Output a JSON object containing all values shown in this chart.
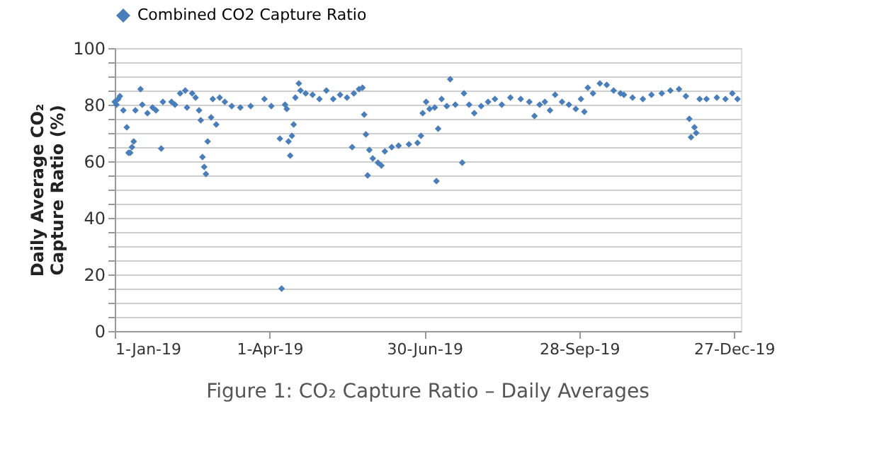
{
  "chart_data": {
    "type": "scatter",
    "title": "Figure 1: CO₂ Capture Ratio – Daily Averages",
    "ylabel": "Daily Average CO₂ Capture Ratio (%)",
    "marker": "diamond",
    "grid": "y",
    "legend": "top",
    "xlim": [
      "2019-01-01",
      "2019-12-31"
    ],
    "xticks": [
      {
        "value": "2019-01-01",
        "label": "1-Jan-19"
      },
      {
        "value": "2019-04-01",
        "label": "1-Apr-19"
      },
      {
        "value": "2019-06-30",
        "label": "30-Jun-19"
      },
      {
        "value": "2019-09-28",
        "label": "28-Sep-19"
      },
      {
        "value": "2019-12-27",
        "label": "27-Dec-19"
      }
    ],
    "ylim": [
      0,
      100
    ],
    "yticks": [
      {
        "value": 0,
        "label": "0"
      },
      {
        "value": 5,
        "label": null
      },
      {
        "value": 10,
        "label": null
      },
      {
        "value": 15,
        "label": null
      },
      {
        "value": 20,
        "label": "20"
      },
      {
        "value": 25,
        "label": null
      },
      {
        "value": 30,
        "label": null
      },
      {
        "value": 35,
        "label": null
      },
      {
        "value": 40,
        "label": "40"
      },
      {
        "value": 45,
        "label": null
      },
      {
        "value": 50,
        "label": null
      },
      {
        "value": 55,
        "label": null
      },
      {
        "value": 60,
        "label": "60"
      },
      {
        "value": 65,
        "label": null
      },
      {
        "value": 70,
        "label": null
      },
      {
        "value": 75,
        "label": null
      },
      {
        "value": 80,
        "label": "80"
      },
      {
        "value": 85,
        "label": null
      },
      {
        "value": 90,
        "label": null
      },
      {
        "value": 95,
        "label": null
      },
      {
        "value": 100,
        "label": "100"
      }
    ],
    "series": [
      {
        "name": "Combined CO2 Capture Ratio",
        "color": "#4a7ebb",
        "x": [
          "2019-01-01",
          "2019-01-02",
          "2019-01-03",
          "2019-01-04",
          "2019-01-06",
          "2019-01-08",
          "2019-01-09",
          "2019-01-10",
          "2019-01-11",
          "2019-01-12",
          "2019-01-13",
          "2019-01-16",
          "2019-01-17",
          "2019-01-20",
          "2019-01-23",
          "2019-01-25",
          "2019-01-28",
          "2019-01-29",
          "2019-02-03",
          "2019-02-05",
          "2019-02-08",
          "2019-02-11",
          "2019-02-12",
          "2019-02-15",
          "2019-02-17",
          "2019-02-19",
          "2019-02-20",
          "2019-02-21",
          "2019-02-22",
          "2019-02-23",
          "2019-02-24",
          "2019-02-26",
          "2019-02-27",
          "2019-03-01",
          "2019-03-03",
          "2019-03-06",
          "2019-03-10",
          "2019-03-15",
          "2019-03-21",
          "2019-03-29",
          "2019-04-02",
          "2019-04-07",
          "2019-04-08",
          "2019-04-10",
          "2019-04-11",
          "2019-04-12",
          "2019-04-13",
          "2019-04-14",
          "2019-04-15",
          "2019-04-16",
          "2019-04-18",
          "2019-04-19",
          "2019-04-22",
          "2019-04-26",
          "2019-04-30",
          "2019-05-04",
          "2019-05-08",
          "2019-05-12",
          "2019-05-16",
          "2019-05-19",
          "2019-05-20",
          "2019-05-23",
          "2019-05-25",
          "2019-05-26",
          "2019-05-27",
          "2019-05-28",
          "2019-05-29",
          "2019-05-31",
          "2019-06-03",
          "2019-06-05",
          "2019-06-07",
          "2019-06-11",
          "2019-06-15",
          "2019-06-21",
          "2019-06-26",
          "2019-06-28",
          "2019-06-29",
          "2019-07-01",
          "2019-07-03",
          "2019-07-06",
          "2019-07-07",
          "2019-07-08",
          "2019-07-10",
          "2019-07-13",
          "2019-07-15",
          "2019-07-18",
          "2019-07-22",
          "2019-07-23",
          "2019-07-26",
          "2019-07-29",
          "2019-08-02",
          "2019-08-06",
          "2019-08-10",
          "2019-08-14",
          "2019-08-19",
          "2019-08-25",
          "2019-08-30",
          "2019-09-02",
          "2019-09-05",
          "2019-09-08",
          "2019-09-11",
          "2019-09-14",
          "2019-09-18",
          "2019-09-22",
          "2019-09-26",
          "2019-09-29",
          "2019-10-01",
          "2019-10-03",
          "2019-10-06",
          "2019-10-10",
          "2019-10-14",
          "2019-10-18",
          "2019-10-22",
          "2019-10-24",
          "2019-10-29",
          "2019-11-04",
          "2019-11-09",
          "2019-11-15",
          "2019-11-20",
          "2019-11-25",
          "2019-11-29",
          "2019-12-01",
          "2019-12-02",
          "2019-12-04",
          "2019-12-05",
          "2019-12-07",
          "2019-12-11",
          "2019-12-17",
          "2019-12-22",
          "2019-12-26",
          "2019-12-29"
        ],
        "values": [
          81,
          80,
          82,
          83,
          78,
          72,
          63,
          63,
          65,
          67,
          78,
          85.5,
          80,
          77,
          79,
          78,
          64.5,
          81,
          81,
          80,
          84,
          85,
          79,
          84,
          82.5,
          78,
          74.5,
          61.5,
          58,
          55.5,
          67,
          75.5,
          82,
          73,
          82.5,
          81,
          79.5,
          79,
          79.5,
          82,
          79.5,
          68,
          15,
          80,
          78.5,
          67,
          62,
          69,
          73,
          82.5,
          87.5,
          85,
          84,
          83.5,
          82,
          85,
          82,
          83.5,
          82.5,
          65,
          84,
          85.5,
          86,
          76.5,
          69.5,
          55,
          64,
          61,
          59.5,
          58.5,
          63.5,
          65,
          65.5,
          66,
          66.5,
          69,
          77,
          81,
          78.5,
          79,
          53,
          71.5,
          82,
          79.5,
          89,
          80,
          59.5,
          84,
          80,
          77,
          79.5,
          81,
          82,
          80,
          82.5,
          82,
          81,
          76,
          80,
          81,
          78,
          83.5,
          81,
          80,
          78.5,
          82,
          77.5,
          86,
          84,
          87.5,
          87,
          85,
          84,
          83.5,
          82.5,
          82,
          83.5,
          84,
          85,
          85.5,
          83,
          75,
          68.5,
          72,
          70,
          82,
          82,
          82.5,
          82,
          84,
          82
        ]
      }
    ]
  }
}
